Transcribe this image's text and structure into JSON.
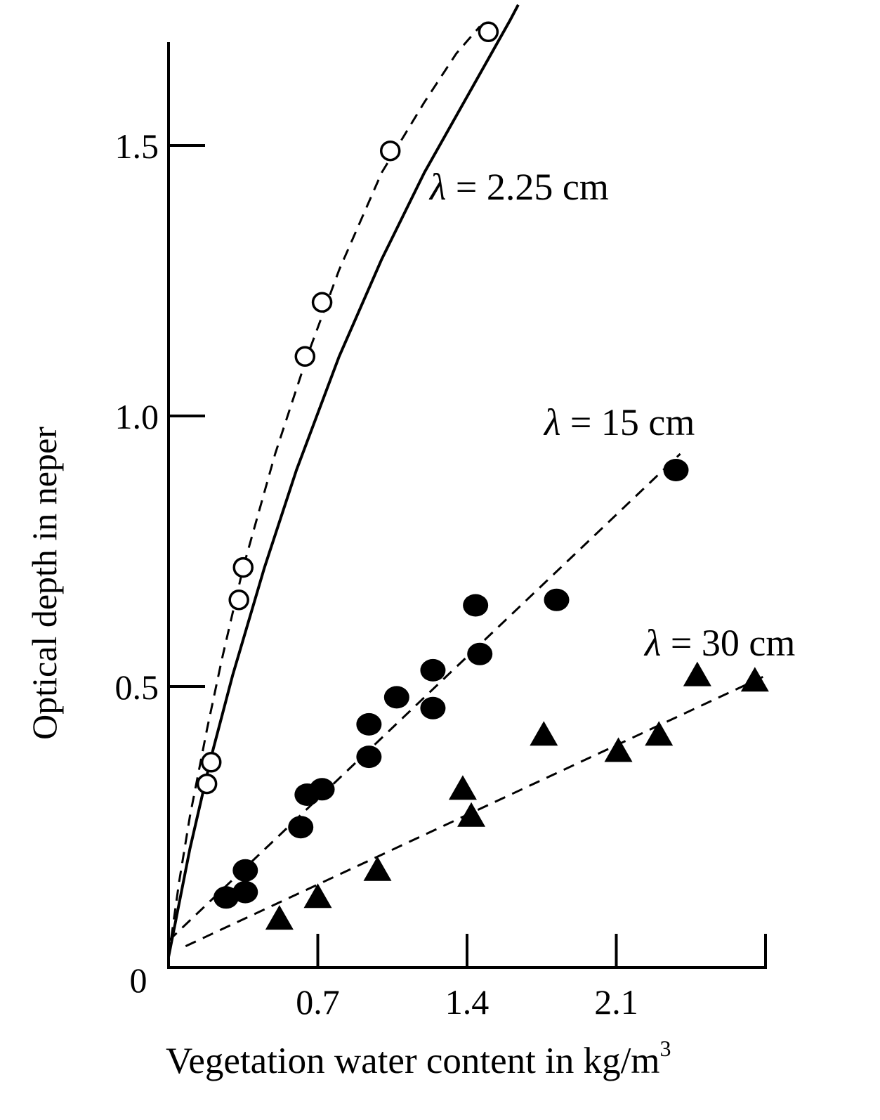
{
  "chart_data": {
    "type": "scatter",
    "title": "",
    "xlabel_main": "Vegetation water content in kg/m",
    "xlabel_sup": "3",
    "ylabel": "Optical depth in neper",
    "xlim": [
      0,
      2.8
    ],
    "ylim": [
      0,
      1.75
    ],
    "x_ticks": [
      0.7,
      1.4,
      2.1
    ],
    "x_tick_labels": [
      "0.7",
      "1.4",
      "2.1"
    ],
    "y_ticks": [
      0.5,
      1.0,
      1.5
    ],
    "y_tick_labels": [
      "0.5",
      "1.0",
      "1.5"
    ],
    "origin_label": "0",
    "series": [
      {
        "name": "λ = 2.25 cm",
        "label_symbol": "λ",
        "label_text": " = 2.25 cm",
        "marker": "open-circle",
        "x": [
          0.18,
          0.2,
          0.33,
          0.35,
          0.64,
          0.72,
          1.04,
          1.5
        ],
        "y": [
          0.32,
          0.36,
          0.66,
          0.72,
          1.11,
          1.21,
          1.49,
          1.71
        ],
        "fits": [
          {
            "style": "dashed",
            "x": [
              0,
              0.05,
              0.1,
              0.18,
              0.25,
              0.35,
              0.5,
              0.65,
              0.8,
              1.0,
              1.2,
              1.35,
              1.46
            ],
            "y": [
              0,
              0.14,
              0.26,
              0.42,
              0.55,
              0.72,
              0.93,
              1.11,
              1.27,
              1.45,
              1.58,
              1.67,
              1.72
            ]
          },
          {
            "style": "solid",
            "x": [
              0,
              0.05,
              0.1,
              0.2,
              0.3,
              0.45,
              0.6,
              0.8,
              1.0,
              1.2,
              1.4,
              1.6,
              1.64
            ],
            "y": [
              0,
              0.1,
              0.2,
              0.37,
              0.52,
              0.72,
              0.9,
              1.11,
              1.29,
              1.45,
              1.59,
              1.73,
              1.76
            ]
          }
        ]
      },
      {
        "name": "λ = 15 cm",
        "label_symbol": "λ",
        "label_text": " = 15 cm",
        "marker": "filled-circle",
        "x": [
          0.27,
          0.36,
          0.36,
          0.62,
          0.65,
          0.72,
          0.94,
          0.94,
          1.07,
          1.24,
          1.24,
          1.44,
          1.46,
          1.82,
          2.38
        ],
        "y": [
          0.11,
          0.12,
          0.16,
          0.24,
          0.3,
          0.31,
          0.37,
          0.43,
          0.48,
          0.46,
          0.53,
          0.65,
          0.56,
          0.66,
          0.9
        ],
        "fits": [
          {
            "style": "dashed",
            "x": [
              0,
              2.4
            ],
            "y": [
              0.03,
              0.93
            ]
          }
        ]
      },
      {
        "name": "λ = 30 cm",
        "label_symbol": "λ",
        "label_text": " = 30 cm",
        "marker": "filled-triangle",
        "x": [
          0.52,
          0.7,
          0.98,
          1.38,
          1.42,
          1.76,
          2.11,
          2.3,
          2.48,
          2.75
        ],
        "y": [
          0.07,
          0.11,
          0.16,
          0.31,
          0.26,
          0.41,
          0.38,
          0.41,
          0.52,
          0.51
        ],
        "fits": [
          {
            "style": "dashed",
            "x": [
              0.08,
              2.8
            ],
            "y": [
              0.02,
              0.52
            ]
          }
        ]
      }
    ]
  }
}
